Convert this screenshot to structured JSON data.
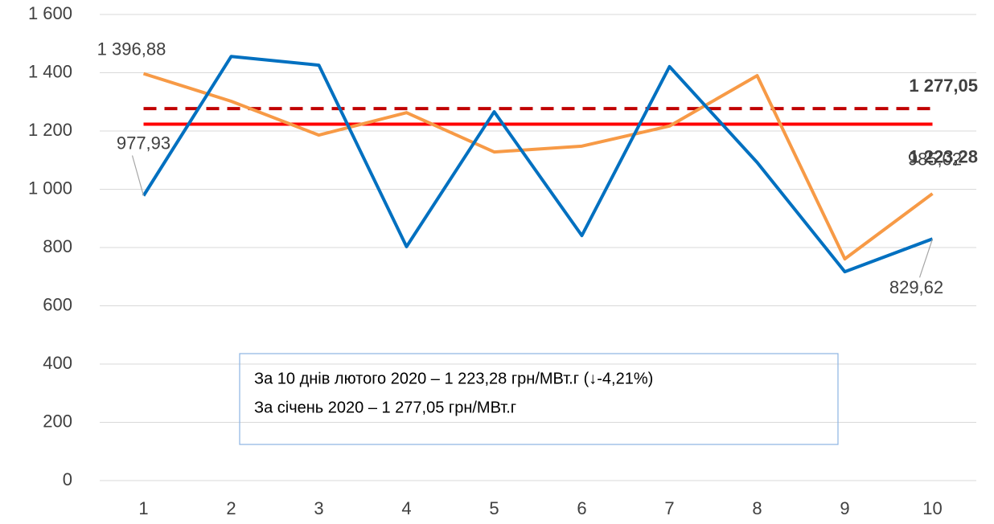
{
  "chart_data": {
    "type": "line",
    "categories": [
      "1",
      "2",
      "3",
      "4",
      "5",
      "6",
      "7",
      "8",
      "9",
      "10"
    ],
    "series": [
      {
        "color": "#f79a46",
        "values": [
          1396.88,
          1302,
          1186,
          1263,
          1128,
          1148,
          1217,
          1390,
          761,
          985.02
        ],
        "value_labels": [
          "1 396,88",
          null,
          null,
          null,
          null,
          null,
          null,
          null,
          null,
          "985,02"
        ]
      },
      {
        "color": "#0070c0",
        "values": [
          977.93,
          1456,
          1426,
          803,
          1266,
          841,
          1421,
          1092,
          717,
          829.62
        ],
        "value_labels": [
          "977,93",
          null,
          null,
          null,
          null,
          null,
          null,
          null,
          null,
          "829,62"
        ]
      }
    ],
    "reference_lines": [
      {
        "value": 1277.05,
        "label": "1 277,05",
        "color": "#c00000",
        "dashed": true
      },
      {
        "value": 1223.28,
        "label": "1 223,28",
        "color": "#ff0000",
        "dashed": false
      }
    ],
    "annotations": [
      "За 10 днів лютого 2020 – 1 223,28 грн/МВт.г (↓-4,21%)",
      "За січень 2020 – 1 277,05 грн/МВт.г"
    ],
    "ylim": [
      0,
      1600
    ],
    "yticks": [
      0,
      200,
      400,
      600,
      800,
      {
        "value": 1000,
        "label": "1 000"
      },
      {
        "value": 1200,
        "label": "1 200"
      },
      {
        "value": 1400,
        "label": "1 400"
      },
      {
        "value": 1600,
        "label": "1 600"
      }
    ],
    "grid": true
  }
}
